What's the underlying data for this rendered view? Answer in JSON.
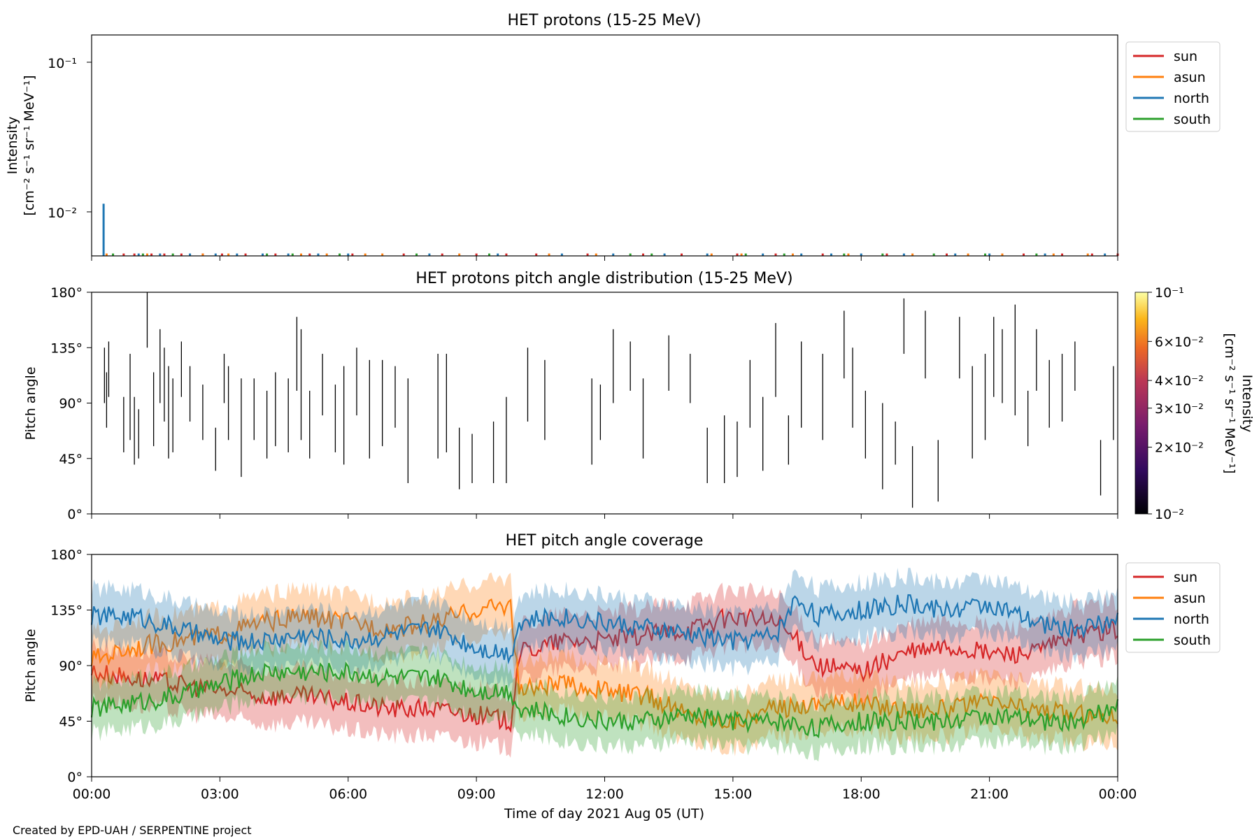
{
  "credit": "Created by EPD-UAH / SERPENTINE project",
  "xaxis": {
    "label": "Time of day 2021 Aug 05 (UT)",
    "ticks": [
      "00:00",
      "03:00",
      "06:00",
      "09:00",
      "12:00",
      "15:00",
      "18:00",
      "21:00",
      "00:00"
    ],
    "range_hours": [
      0,
      24
    ]
  },
  "colors": {
    "sun": "#d62728",
    "asun": "#ff7f0e",
    "north": "#1f77b4",
    "south": "#2ca02c"
  },
  "panels": {
    "intensity": {
      "title": "HET protons (15-25 MeV)",
      "ylabel_line1": "Intensity",
      "ylabel_line2": "[cm⁻² s⁻¹ sr⁻¹ MeV⁻¹]",
      "yticks": [
        "10⁻¹",
        "10⁻²"
      ],
      "legend": [
        "sun",
        "asun",
        "north",
        "south"
      ]
    },
    "pad": {
      "title": "HET protons pitch angle distribution (15-25 MeV)",
      "ylabel": "Pitch angle",
      "yticks": [
        "180°",
        "135°",
        "90°",
        "45°",
        "0°"
      ],
      "colorbar_label": "Intensity",
      "colorbar_units": "[cm⁻² s⁻¹ sr⁻¹ MeV⁻¹]",
      "colorbar_ticks": [
        "10⁻¹",
        "6×10⁻²",
        "4×10⁻²",
        "3×10⁻²",
        "2×10⁻²",
        "10⁻²"
      ]
    },
    "coverage": {
      "title": "HET pitch angle coverage",
      "ylabel": "Pitch angle",
      "yticks": [
        "180°",
        "135°",
        "90°",
        "45°",
        "0°"
      ],
      "legend": [
        "sun",
        "asun",
        "north",
        "south"
      ]
    }
  },
  "chart_data": [
    {
      "type": "scatter",
      "title": "HET protons (15-25 MeV)",
      "xlabel": "Time of day 2021 Aug 05 (UT)",
      "ylabel": "Intensity [cm⁻² s⁻¹ sr⁻¹ MeV⁻¹]",
      "yscale": "log",
      "ylim": [
        0.0055,
        0.15
      ],
      "xlim": [
        0,
        24
      ],
      "series": [
        {
          "name": "sun",
          "x": [
            0.75,
            1.0,
            1.4,
            1.7,
            2.1,
            2.6,
            3.05,
            3.6,
            4.3,
            5.1,
            6.1,
            7.3,
            8.2,
            9.0,
            9.7,
            10.4,
            11.6,
            12.9,
            13.8,
            15.1,
            16.0,
            17.1,
            18.6,
            20.0,
            21.8,
            22.7,
            23.4,
            24.0
          ],
          "y": [
            0.0057,
            0.0057,
            0.0057,
            0.0057,
            0.0057,
            0.0057,
            0.0057,
            0.0057,
            0.0057,
            0.0057,
            0.0057,
            0.0057,
            0.0057,
            0.0057,
            0.0057,
            0.0057,
            0.0057,
            0.0057,
            0.0057,
            0.0057,
            0.0057,
            0.0057,
            0.0057,
            0.0057,
            0.0057,
            0.0057,
            0.0057,
            0.0057
          ]
        },
        {
          "name": "asun",
          "x": [
            0.35,
            1.3,
            2.6,
            3.2,
            4.9,
            5.5,
            6.4,
            6.8,
            8.6,
            10.7,
            11.8,
            14.5,
            15.2,
            16.4,
            17.7,
            19.2,
            20.5,
            21.3,
            22.5,
            23.3
          ],
          "y": [
            0.0057,
            0.0057,
            0.0057,
            0.0057,
            0.0057,
            0.0057,
            0.0057,
            0.0057,
            0.0057,
            0.0057,
            0.0057,
            0.0057,
            0.0057,
            0.0057,
            0.0057,
            0.0057,
            0.0057,
            0.0057,
            0.0057,
            0.0057
          ]
        },
        {
          "name": "north",
          "x": [
            0.28,
            1.1,
            1.6,
            2.3,
            2.9,
            3.4,
            4.0,
            4.6,
            5.3,
            6.0,
            7.9,
            9.5,
            11.0,
            12.2,
            13.4,
            14.4,
            15.7,
            16.6,
            17.3,
            18.0,
            19.0,
            20.2,
            21.0,
            22.3,
            23.7
          ],
          "y": [
            0.012,
            0.0057,
            0.0057,
            0.0057,
            0.0057,
            0.0057,
            0.0057,
            0.0057,
            0.0057,
            0.0057,
            0.0057,
            0.0057,
            0.0057,
            0.0057,
            0.0057,
            0.0057,
            0.0057,
            0.0057,
            0.0057,
            0.0057,
            0.0057,
            0.0057,
            0.0057,
            0.0057,
            0.0057
          ]
        },
        {
          "name": "south",
          "x": [
            0.5,
            1.2,
            1.9,
            4.1,
            4.7,
            5.8,
            7.6,
            9.3,
            12.6,
            13.1,
            15.3,
            16.2,
            17.6,
            18.5,
            19.7,
            20.9,
            22.1
          ],
          "y": [
            0.0057,
            0.0057,
            0.0057,
            0.0057,
            0.0057,
            0.0057,
            0.0057,
            0.0057,
            0.0057,
            0.0057,
            0.0057,
            0.0057,
            0.0057,
            0.0057,
            0.0057,
            0.0057,
            0.0057
          ]
        }
      ],
      "legend": "upper-right-outside"
    },
    {
      "type": "heatmap",
      "title": "HET protons pitch angle distribution (15-25 MeV)",
      "xlabel": "Time of day 2021 Aug 05 (UT)",
      "ylabel": "Pitch angle",
      "ylim": [
        0,
        180
      ],
      "xlim": [
        0,
        24
      ],
      "colorscale": "inferno",
      "clim": [
        0.01,
        0.1
      ],
      "colorbar_scale": "log",
      "segments": [
        [
          0.3,
          90,
          135
        ],
        [
          0.35,
          70,
          115
        ],
        [
          0.4,
          95,
          140
        ],
        [
          0.75,
          50,
          95
        ],
        [
          0.9,
          60,
          130
        ],
        [
          1.0,
          40,
          95
        ],
        [
          1.1,
          45,
          85
        ],
        [
          1.3,
          135,
          180
        ],
        [
          1.45,
          55,
          115
        ],
        [
          1.6,
          90,
          150
        ],
        [
          1.7,
          75,
          135
        ],
        [
          1.8,
          45,
          120
        ],
        [
          1.9,
          50,
          110
        ],
        [
          2.1,
          95,
          140
        ],
        [
          2.3,
          75,
          120
        ],
        [
          2.6,
          60,
          105
        ],
        [
          2.9,
          35,
          70
        ],
        [
          3.1,
          90,
          130
        ],
        [
          3.2,
          60,
          120
        ],
        [
          3.5,
          30,
          110
        ],
        [
          3.8,
          60,
          110
        ],
        [
          4.1,
          45,
          100
        ],
        [
          4.3,
          55,
          115
        ],
        [
          4.6,
          50,
          110
        ],
        [
          4.8,
          100,
          160
        ],
        [
          4.9,
          60,
          150
        ],
        [
          5.1,
          45,
          100
        ],
        [
          5.4,
          80,
          130
        ],
        [
          5.7,
          50,
          105
        ],
        [
          5.9,
          40,
          120
        ],
        [
          6.2,
          80,
          135
        ],
        [
          6.5,
          45,
          125
        ],
        [
          6.8,
          55,
          125
        ],
        [
          7.1,
          70,
          120
        ],
        [
          7.4,
          25,
          110
        ],
        [
          8.1,
          45,
          130
        ],
        [
          8.3,
          50,
          130
        ],
        [
          8.6,
          20,
          70
        ],
        [
          8.9,
          25,
          65
        ],
        [
          9.4,
          25,
          75
        ],
        [
          9.7,
          25,
          95
        ],
        [
          10.2,
          75,
          135
        ],
        [
          10.6,
          60,
          125
        ],
        [
          11.7,
          40,
          110
        ],
        [
          11.9,
          60,
          105
        ],
        [
          12.2,
          90,
          150
        ],
        [
          12.6,
          100,
          140
        ],
        [
          12.9,
          45,
          110
        ],
        [
          13.5,
          100,
          145
        ],
        [
          14.0,
          90,
          130
        ],
        [
          14.4,
          25,
          70
        ],
        [
          14.8,
          25,
          80
        ],
        [
          15.1,
          30,
          75
        ],
        [
          15.4,
          70,
          125
        ],
        [
          15.7,
          35,
          95
        ],
        [
          16.0,
          95,
          155
        ],
        [
          16.3,
          40,
          80
        ],
        [
          16.6,
          70,
          140
        ],
        [
          17.1,
          60,
          130
        ],
        [
          17.6,
          110,
          165
        ],
        [
          17.8,
          70,
          135
        ],
        [
          18.1,
          45,
          100
        ],
        [
          18.5,
          20,
          90
        ],
        [
          18.8,
          40,
          75
        ],
        [
          19.0,
          130,
          175
        ],
        [
          19.2,
          5,
          55
        ],
        [
          19.5,
          110,
          165
        ],
        [
          19.8,
          10,
          60
        ],
        [
          20.3,
          110,
          160
        ],
        [
          20.6,
          45,
          120
        ],
        [
          20.9,
          60,
          130
        ],
        [
          21.1,
          95,
          160
        ],
        [
          21.3,
          90,
          150
        ],
        [
          21.6,
          80,
          170
        ],
        [
          21.9,
          55,
          100
        ],
        [
          22.1,
          100,
          150
        ],
        [
          22.4,
          70,
          125
        ],
        [
          22.7,
          75,
          130
        ],
        [
          23.0,
          100,
          140
        ],
        [
          23.6,
          15,
          60
        ],
        [
          23.9,
          60,
          120
        ]
      ]
    },
    {
      "type": "line",
      "title": "HET pitch angle coverage",
      "xlabel": "Time of day 2021 Aug 05 (UT)",
      "ylabel": "Pitch angle",
      "ylim": [
        0,
        180
      ],
      "xlim": [
        0,
        24
      ],
      "series": [
        {
          "name": "sun",
          "x": [
            0,
            1,
            2,
            3,
            4,
            5,
            6,
            7,
            8,
            9,
            9.8,
            10,
            11,
            12,
            13,
            14,
            15,
            16,
            16.5,
            17,
            18,
            19,
            20,
            21,
            22,
            23,
            24
          ],
          "y": [
            85,
            80,
            75,
            70,
            65,
            65,
            60,
            55,
            55,
            50,
            45,
            100,
            110,
            110,
            115,
            120,
            130,
            125,
            110,
            90,
            85,
            100,
            105,
            100,
            100,
            115,
            120
          ],
          "band_half_width": 22
        },
        {
          "name": "asun",
          "x": [
            0,
            1,
            2,
            3,
            4,
            5,
            6,
            7,
            8,
            9,
            9.8,
            10,
            11,
            12,
            13,
            14,
            15,
            16,
            17,
            18,
            19,
            20,
            21,
            22,
            23,
            24
          ],
          "y": [
            95,
            105,
            110,
            115,
            125,
            130,
            125,
            120,
            125,
            135,
            140,
            70,
            75,
            70,
            65,
            50,
            45,
            55,
            60,
            60,
            55,
            55,
            60,
            55,
            50,
            50
          ],
          "band_half_width": 22
        },
        {
          "name": "north",
          "x": [
            0,
            1,
            2,
            3,
            4,
            5,
            6,
            7,
            8,
            9,
            9.8,
            10,
            11,
            12,
            13,
            14,
            15,
            16,
            16.5,
            17,
            18,
            19,
            20,
            21,
            22,
            23,
            24
          ],
          "y": [
            130,
            130,
            120,
            110,
            110,
            115,
            110,
            115,
            120,
            105,
            100,
            125,
            130,
            125,
            120,
            115,
            110,
            115,
            145,
            130,
            135,
            140,
            135,
            140,
            125,
            120,
            125
          ],
          "band_half_width": 22
        },
        {
          "name": "south",
          "x": [
            0,
            1,
            2,
            3,
            4,
            5,
            6,
            7,
            8,
            9,
            9.8,
            10,
            11,
            12,
            13,
            14,
            15,
            16,
            17,
            18,
            19,
            20,
            21,
            22,
            23,
            24
          ],
          "y": [
            55,
            60,
            65,
            75,
            85,
            85,
            85,
            80,
            80,
            70,
            70,
            55,
            50,
            45,
            45,
            50,
            45,
            45,
            40,
            45,
            45,
            45,
            50,
            45,
            45,
            55
          ],
          "band_half_width": 20
        }
      ],
      "legend": "upper-right-outside"
    }
  ]
}
